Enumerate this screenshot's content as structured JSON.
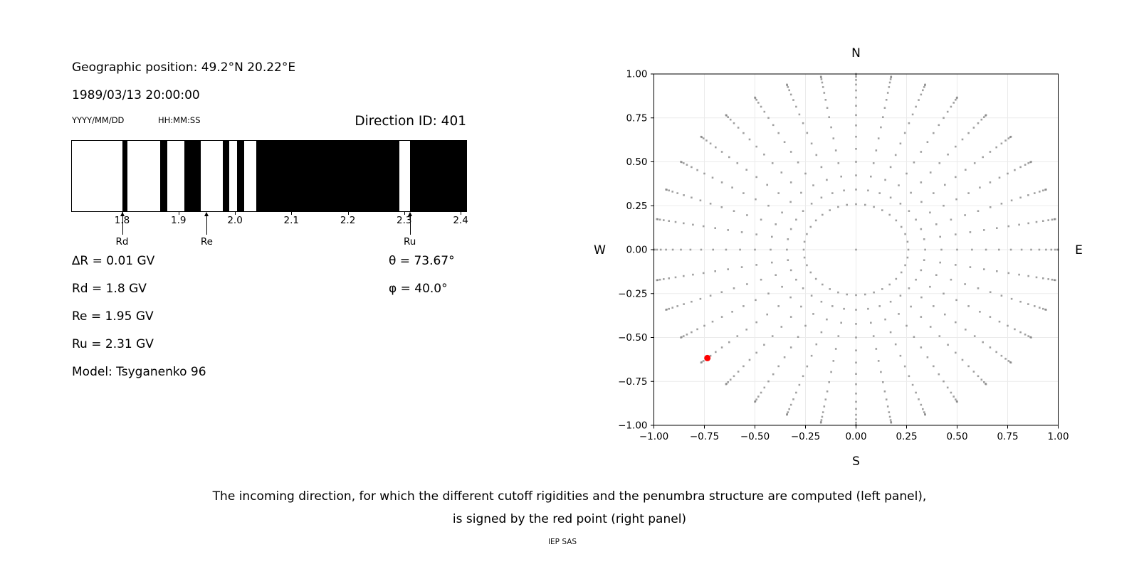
{
  "header": {
    "geographic_position": "Geographic position: 49.2°N 20.22°E",
    "datetime": "1989/03/13 20:00:00",
    "date_format": "YYYY/MM/DD",
    "time_format": "HH:MM:SS",
    "direction_id": "Direction ID: 401"
  },
  "parameters": {
    "delta_r": "∆R = 0.01 GV",
    "rd": "Rd = 1.8 GV",
    "re": "Re = 1.95 GV",
    "ru": "Ru = 2.31 GV",
    "model": "Model: Tsyganenko 96",
    "theta": "θ = 73.67°",
    "phi": "φ = 40.0°"
  },
  "caption": {
    "line1": "The incoming direction, for which the different cutoff rigidities and the penumbra structure are computed (left panel),",
    "line2": "is signed by the red point (right panel)",
    "credit": "IEP SAS"
  },
  "chart_data": [
    {
      "type": "bar",
      "name": "penumbra-structure",
      "description": "Cutoff rigidity penumbra barcode: black = allowed bands, white = forbidden bands",
      "xlim": [
        1.711,
        2.41
      ],
      "xticks": [
        1.8,
        1.9,
        2.0,
        2.1,
        2.2,
        2.3,
        2.4
      ],
      "xtick_labels": [
        "1.8",
        "1.9",
        "2.0",
        "2.1",
        "2.2",
        "2.3",
        "2.4"
      ],
      "black_segments_gv": [
        [
          1.8,
          1.81
        ],
        [
          1.868,
          1.88
        ],
        [
          1.91,
          1.94
        ],
        [
          1.978,
          1.99
        ],
        [
          2.004,
          2.017
        ],
        [
          2.038,
          2.292
        ],
        [
          2.31,
          2.41
        ]
      ],
      "markers": [
        {
          "label": "Rd",
          "rigidity_gv": 1.8
        },
        {
          "label": "Re",
          "rigidity_gv": 1.95
        },
        {
          "label": "Ru",
          "rigidity_gv": 2.31
        }
      ]
    },
    {
      "type": "scatter",
      "name": "incoming-direction-grid",
      "xlim": [
        -1.0,
        1.0
      ],
      "ylim": [
        -1.0,
        1.0
      ],
      "xticks": [
        -1.0,
        -0.75,
        -0.5,
        -0.25,
        0.0,
        0.25,
        0.5,
        0.75,
        1.0
      ],
      "yticks": [
        1.0,
        0.75,
        0.5,
        0.25,
        0.0,
        -0.25,
        -0.5,
        -0.75,
        -1.0
      ],
      "xtick_labels": [
        "−1.00",
        "−0.75",
        "−0.50",
        "−0.25",
        "0.00",
        "0.25",
        "0.50",
        "0.75",
        "1.00"
      ],
      "ytick_labels": [
        "1.00",
        "0.75",
        "0.50",
        "0.25",
        "0.00",
        "−0.25",
        "−0.50",
        "−0.75",
        "−1.00"
      ],
      "grid": true,
      "compass_labels": {
        "top": "N",
        "bottom": "S",
        "left": "W",
        "right": "E"
      },
      "azimuth_start_deg": 0,
      "azimuth_step_deg": 10,
      "azimuth_count": 36,
      "zenith_min_deg": 15,
      "zenith_max_deg": 90,
      "zenith_step_deg": 5,
      "radius_rule": "sin(zenith)",
      "includes_center_point": true,
      "dot_color": "#808080",
      "dot_opacity": 0.75,
      "highlight_point": {
        "color": "#ff0000",
        "azimuth_deg": 220,
        "zenith_deg": 73.67,
        "x": -0.735,
        "y": -0.617
      }
    }
  ]
}
